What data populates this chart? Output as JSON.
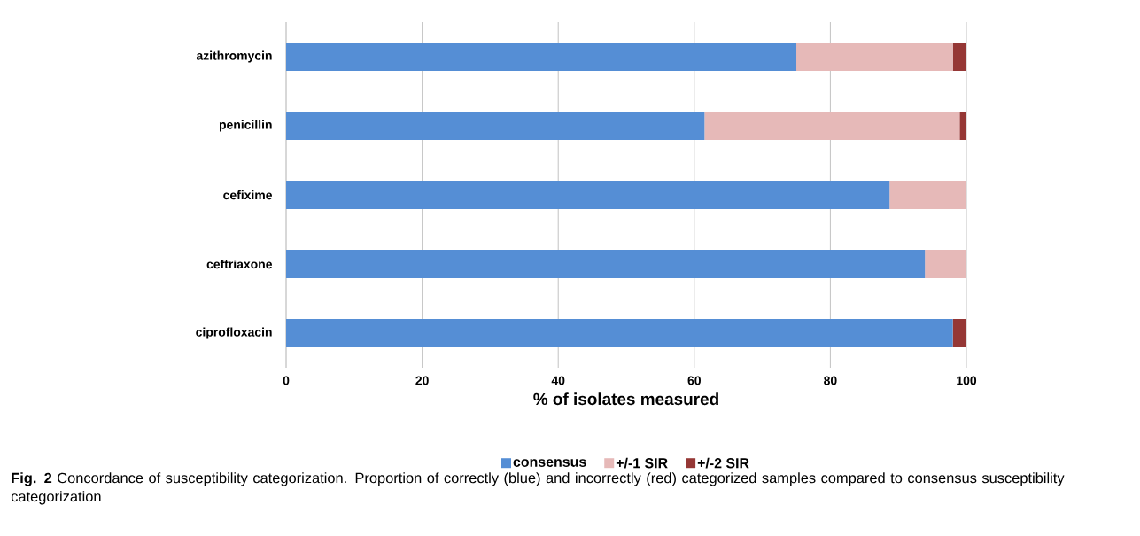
{
  "chart_data": {
    "type": "bar",
    "orientation": "horizontal",
    "stacked": true,
    "categories": [
      "azithromycin",
      "penicillin",
      "cefixime",
      "ceftriaxone",
      "ciprofloxacin"
    ],
    "series": [
      {
        "name": "consensus",
        "color": "#558ed5",
        "values": [
          75.0,
          61.5,
          88.7,
          93.9,
          98.0
        ]
      },
      {
        "name": "+/-1 SIR",
        "color": "#e6b9b8",
        "values": [
          23.0,
          37.5,
          11.3,
          6.1,
          null
        ]
      },
      {
        "name": "+/-2 SIR",
        "color": "#953735",
        "values": [
          2.0,
          1.0,
          null,
          null,
          2.0
        ]
      }
    ],
    "xlabel": "% of isolates measured",
    "xlim": [
      0,
      100
    ],
    "xticks": [
      0,
      20,
      40,
      60,
      80,
      100
    ],
    "grid": "x",
    "legend": "bottom",
    "annotations": [
      "**Fig. 2** Concordance of susceptibility categorization. Proportion of correctly (blue) and incorrectly (red) categorized samples compared to consensus susceptibility categorization"
    ]
  }
}
